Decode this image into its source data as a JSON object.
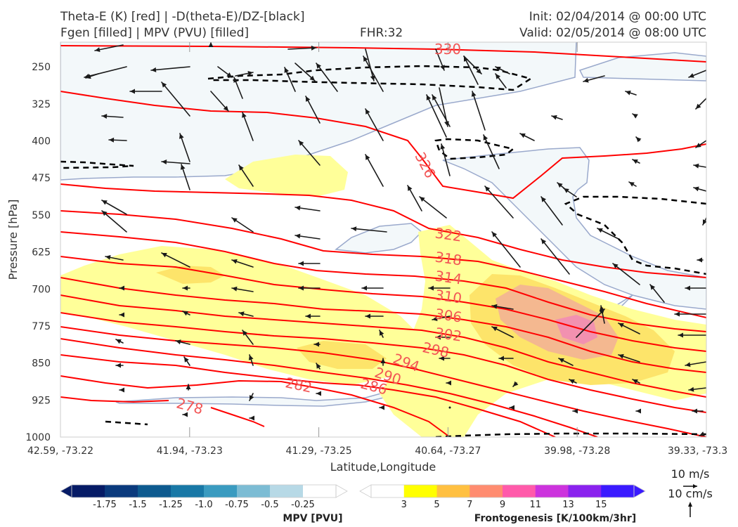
{
  "header": {
    "line1_left": "Theta-E (K) [red] | -D(theta-E)/DZ-[black]",
    "line2_left": "Fgen [filled] | MPV (PVU) [filled]",
    "fhr": "FHR:32",
    "init": "Init: 02/04/2014 @ 00:00 UTC",
    "valid": "Valid: 02/05/2014 @ 08:00 UTC"
  },
  "colors": {
    "theta_e": "#ff0000",
    "theta_e_label": "#f25555",
    "mpv_outline": "#9aa9cc",
    "mpv_fill": "#f3f8fa",
    "fgen_3": "#ffff99",
    "fgen_5": "#fde46a",
    "fgen_7": "#f4b890",
    "fgen_9": "#f291b0",
    "dz": "#000000",
    "wind": "#1a1a1a"
  },
  "chart_data": {
    "type": "cross-section",
    "xlabel": "Latitude,Longitude",
    "ylabel": "Pressure [hPa]",
    "x_ticks": [
      "42.59, -73.22",
      "41.94, -73.23",
      "41.29, -73.25",
      "40.64, -73.27",
      "39.98, -73.28",
      "39.33, -73.3"
    ],
    "y_ticks": [
      250,
      325,
      400,
      475,
      550,
      625,
      700,
      775,
      850,
      925,
      1000
    ],
    "ylim": [
      1000,
      200
    ],
    "theta_e_labels": [
      "330",
      "326",
      "322",
      "318",
      "314",
      "310",
      "306",
      "302",
      "298",
      "294",
      "290",
      "286",
      "282",
      "278"
    ],
    "colorbar_mpv": {
      "title": "MPV [PVU]",
      "ticks": [
        "-1.75",
        "-1.5",
        "-1.25",
        "-1.0",
        "-0.75",
        "-0.5",
        "-0.25"
      ],
      "colors": [
        "#061b66",
        "#0a3a7d",
        "#0d5a8f",
        "#1878a6",
        "#3a9bc0",
        "#7cbcd4",
        "#b7d9e6",
        "#ffffff"
      ]
    },
    "colorbar_fgen": {
      "title": "Frontogenesis [K/100km/3hr]",
      "ticks": [
        "3",
        "5",
        "7",
        "9",
        "11",
        "13",
        "15"
      ],
      "colors": [
        "#ffffff",
        "#ffff00",
        "#ffc041",
        "#ff8c70",
        "#ff5aaa",
        "#cc33dd",
        "#8a22ee",
        "#3a1aff"
      ]
    },
    "wind_key": {
      "horizontal": "10 m/s",
      "vertical": "10 cm/s"
    }
  }
}
